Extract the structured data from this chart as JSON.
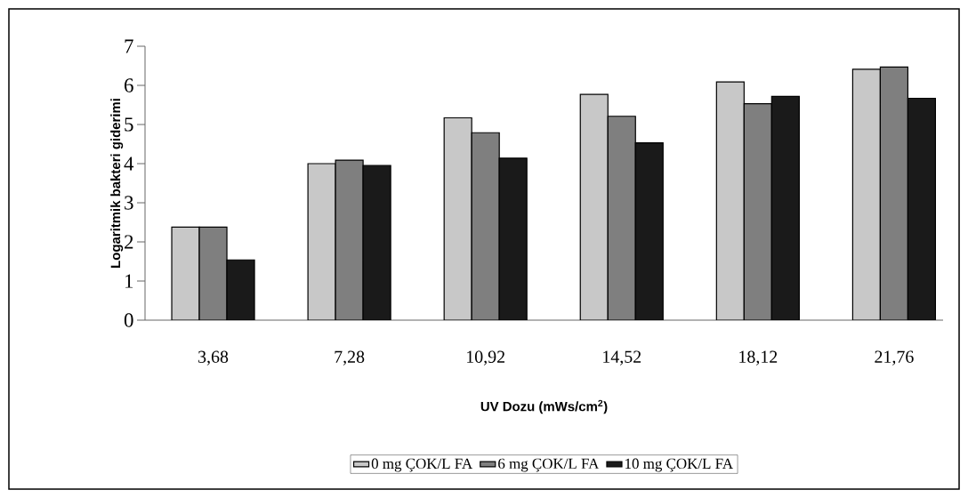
{
  "chart_data": {
    "type": "bar",
    "xlabel": "UV Dozu (mWs/cm$^{2}$)",
    "ylabel": "Logaritmik bakteri giderimi",
    "categories": [
      "3,68",
      "7,28",
      "10,92",
      "14,52",
      "18,12",
      "21,76"
    ],
    "series": [
      {
        "name": "0 mg ÇOK/L FA",
        "color": "#c8c8c8",
        "values": [
          2.38,
          4.0,
          5.17,
          5.77,
          6.09,
          6.41
        ]
      },
      {
        "name": "6 mg ÇOK/L FA",
        "color": "#7f7f7f",
        "values": [
          2.38,
          4.09,
          4.79,
          5.21,
          5.53,
          6.47
        ]
      },
      {
        "name": "10 mg ÇOK/L FA",
        "color": "#1a1a1a",
        "values": [
          1.54,
          3.95,
          4.14,
          4.53,
          5.72,
          5.67
        ]
      }
    ],
    "ylim": [
      0,
      7
    ],
    "yticks": [
      0,
      1,
      2,
      3,
      4,
      5,
      6,
      7
    ],
    "grid": false,
    "legend": "bottom"
  }
}
